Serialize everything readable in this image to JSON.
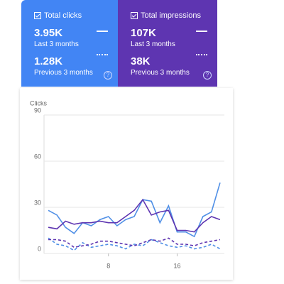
{
  "cards": [
    {
      "title": "Total clicks",
      "current": "3.95K",
      "current_label": "Last 3 months",
      "previous": "1.28K",
      "previous_label": "Previous 3 months"
    },
    {
      "title": "Total impressions",
      "current": "107K",
      "current_label": "Last 3 months",
      "previous": "38K",
      "previous_label": "Previous 3 months"
    }
  ],
  "chart_data": {
    "type": "line",
    "y_label": "Clicks",
    "x": [
      1,
      2,
      3,
      4,
      5,
      6,
      7,
      8,
      9,
      10,
      11,
      12,
      13,
      14,
      15,
      16,
      17,
      18,
      19,
      20,
      21
    ],
    "xlim": [
      0.5,
      21.5
    ],
    "xticks": [
      8,
      16
    ],
    "ylim": [
      0,
      90
    ],
    "yticks": [
      0,
      30,
      60,
      90
    ],
    "grid": true,
    "series": [
      {
        "color": "#4f8fe6",
        "dashed": false,
        "values": [
          28,
          25,
          17,
          13,
          20,
          18,
          22,
          24,
          18,
          22,
          24,
          35,
          34,
          20,
          31,
          14,
          14,
          11,
          24,
          27,
          46
        ]
      },
      {
        "color": "#5e35b1",
        "dashed": false,
        "values": [
          17,
          16,
          21,
          19,
          20,
          20,
          21,
          20,
          20,
          24,
          28,
          35,
          25,
          27,
          28,
          15,
          15,
          14,
          20,
          24,
          22
        ]
      },
      {
        "color": "#4f8fe6",
        "dashed": true,
        "values": [
          10,
          6,
          5,
          2,
          7,
          4,
          5,
          6,
          5,
          3,
          6,
          5,
          9,
          7,
          5,
          4,
          5,
          3,
          4,
          6,
          3
        ]
      },
      {
        "color": "#5e35b1",
        "dashed": true,
        "values": [
          9,
          9,
          8,
          4,
          5,
          6,
          8,
          8,
          7,
          6,
          5,
          7,
          9,
          8,
          10,
          6,
          6,
          5,
          7,
          8,
          9
        ]
      }
    ]
  }
}
